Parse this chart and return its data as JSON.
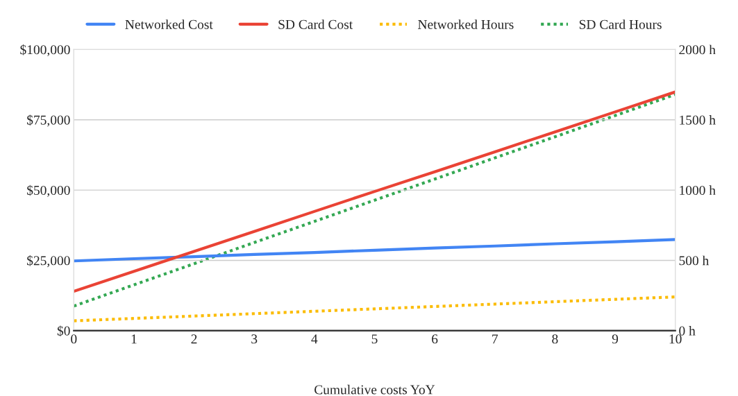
{
  "chart_data": {
    "type": "line",
    "xlabel": "Cumulative costs YoY",
    "x": [
      0,
      1,
      2,
      3,
      4,
      5,
      6,
      7,
      8,
      9,
      10
    ],
    "xlim": [
      0,
      10
    ],
    "xticks": [
      0,
      1,
      2,
      3,
      4,
      5,
      6,
      7,
      8,
      9,
      10
    ],
    "ylim": [
      0,
      100000
    ],
    "yticks": [
      {
        "value": 0,
        "label": "$0"
      },
      {
        "value": 25000,
        "label": "$25,000"
      },
      {
        "value": 50000,
        "label": "$50,000"
      },
      {
        "value": 75000,
        "label": "$75,000"
      },
      {
        "value": 100000,
        "label": "$100,000"
      }
    ],
    "y2lim": [
      0,
      2000
    ],
    "y2ticks": [
      {
        "value": 0,
        "label": "0 h"
      },
      {
        "value": 500,
        "label": "500 h"
      },
      {
        "value": 1000,
        "label": "1000 h"
      },
      {
        "value": 1500,
        "label": "1500 h"
      },
      {
        "value": 2000,
        "label": "2000 h"
      }
    ],
    "grid": "y",
    "legend": "top",
    "marker": "none",
    "series": [
      {
        "name": "Networked Cost",
        "color": "#4285f4",
        "line_style": "solid",
        "values": [
          24800,
          25600,
          26300,
          27100,
          27800,
          28600,
          29400,
          30100,
          30900,
          31600,
          32400
        ]
      },
      {
        "name": "SD Card Cost",
        "color": "#ea4335",
        "line_style": "solid",
        "values": [
          14000,
          21100,
          28200,
          35300,
          42400,
          49500,
          56500,
          63600,
          70700,
          77800,
          84900
        ]
      },
      {
        "name": "Networked Hours",
        "color": "#fbbc04",
        "line_style": "dotted",
        "axis": "y2",
        "values": [
          70,
          87,
          104,
          121,
          138,
          155,
          172,
          189,
          206,
          223,
          240
        ]
      },
      {
        "name": "SD Card Hours",
        "color": "#34a853",
        "line_style": "dotted",
        "axis": "y2",
        "values": [
          175,
          326,
          476,
          627,
          777,
          928,
          1078,
          1229,
          1379,
          1530,
          1680
        ]
      }
    ]
  }
}
